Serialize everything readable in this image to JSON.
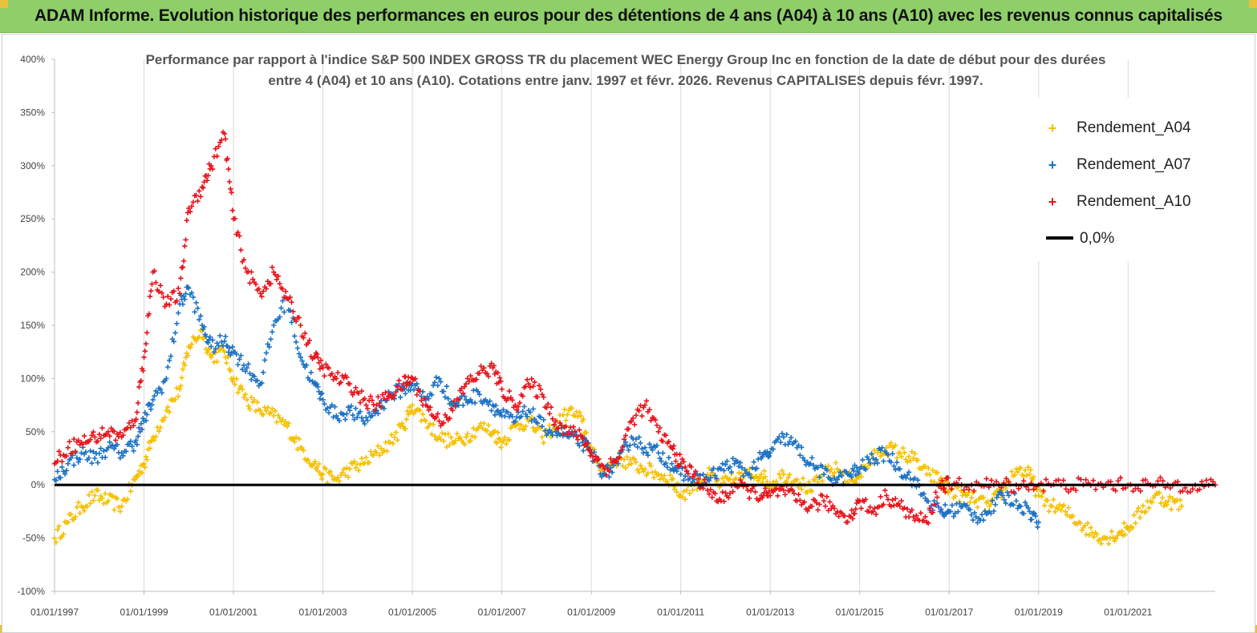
{
  "banner": {
    "title": "ADAM Informe. Evolution historique des performances en euros pour des détentions de 4 ans (A04) à 10 ans (A10) avec les revenus connus capitalisés"
  },
  "chart_data": {
    "type": "scatter",
    "title_line1": "Performance par rapport à l'indice S&P 500 INDEX GROSS TR  du placement WEC Energy Group Inc en fonction de la date de début pour des durées",
    "title_line2": "entre 4 (A04) et 10 ans (A10).  Cotations entre janv. 1997 et févr. 2026. Revenus CAPITALISES depuis févr. 1997.",
    "xlabel": "",
    "ylabel": "",
    "xlim": [
      1997.0,
      2022.95
    ],
    "ylim": [
      -100,
      400
    ],
    "y_ticks": [
      "400%",
      "350%",
      "300%",
      "250%",
      "200%",
      "150%",
      "100%",
      "50%",
      "0%",
      "-50%",
      "-100%"
    ],
    "y_tick_values": [
      400,
      350,
      300,
      250,
      200,
      150,
      100,
      50,
      0,
      -50,
      -100
    ],
    "x_ticks": [
      "01/01/1997",
      "01/01/1999",
      "01/01/2001",
      "01/01/2003",
      "01/01/2005",
      "01/01/2007",
      "01/01/2009",
      "01/01/2011",
      "01/01/2013",
      "01/01/2015",
      "01/01/2017",
      "01/01/2019",
      "01/01/2021"
    ],
    "x_tick_values": [
      1997,
      1999,
      2001,
      2003,
      2005,
      2007,
      2009,
      2011,
      2013,
      2015,
      2017,
      2019,
      2021
    ],
    "grid": "vertical",
    "legend_position": "top-right",
    "series": [
      {
        "name": "Rendement_A04",
        "color": "#f5c000",
        "marker": "plus",
        "x": [
          1997.0,
          1997.3,
          1997.6,
          1997.9,
          1998.2,
          1998.5,
          1998.8,
          1999.0,
          1999.2,
          1999.5,
          1999.8,
          2000.0,
          2000.3,
          2000.5,
          2000.8,
          2001.0,
          2001.3,
          2001.6,
          2001.9,
          2002.2,
          2002.5,
          2002.8,
          2003.0,
          2003.3,
          2003.6,
          2003.9,
          2004.2,
          2004.5,
          2004.8,
          2005.0,
          2005.3,
          2005.6,
          2005.9,
          2006.2,
          2006.5,
          2006.8,
          2007.0,
          2007.3,
          2007.6,
          2007.9,
          2008.2,
          2008.5,
          2008.8,
          2009.0,
          2009.3,
          2009.6,
          2009.9,
          2010.2,
          2010.5,
          2010.8,
          2011.0,
          2011.3,
          2011.6,
          2011.9,
          2012.2,
          2012.5,
          2012.8,
          2013.0,
          2013.3,
          2013.6,
          2013.9,
          2014.2,
          2014.5,
          2014.8,
          2015.0,
          2015.3,
          2015.6,
          2015.9,
          2016.2,
          2016.5,
          2016.8,
          2017.0,
          2017.3,
          2017.6,
          2017.9,
          2018.2,
          2018.5,
          2018.8,
          2019.0,
          2019.3,
          2019.6,
          2019.9,
          2020.2,
          2020.5,
          2020.8,
          2021.0,
          2021.3,
          2021.6,
          2021.9,
          2022.2
        ],
        "values": [
          -50,
          -35,
          -20,
          -10,
          -15,
          -20,
          5,
          20,
          45,
          70,
          90,
          130,
          145,
          120,
          125,
          100,
          80,
          70,
          65,
          55,
          35,
          20,
          10,
          5,
          15,
          20,
          30,
          40,
          55,
          75,
          60,
          45,
          40,
          45,
          55,
          50,
          40,
          55,
          60,
          45,
          55,
          70,
          60,
          30,
          15,
          25,
          20,
          15,
          10,
          5,
          -10,
          0,
          10,
          0,
          5,
          10,
          10,
          0,
          10,
          5,
          -5,
          10,
          15,
          5,
          10,
          25,
          35,
          30,
          25,
          10,
          5,
          -5,
          -10,
          -15,
          -20,
          -5,
          15,
          10,
          -10,
          -20,
          -25,
          -35,
          -45,
          -50,
          -45,
          -40,
          -25,
          -10,
          -15,
          -20
        ],
        "point_count": 90
      },
      {
        "name": "Rendement_A07",
        "color": "#1c72c4",
        "marker": "plus",
        "x": [
          1997.0,
          1997.3,
          1997.6,
          1997.9,
          1998.2,
          1998.5,
          1998.8,
          1999.0,
          1999.2,
          1999.5,
          1999.8,
          2000.0,
          2000.3,
          2000.5,
          2000.8,
          2001.0,
          2001.3,
          2001.6,
          2001.9,
          2002.2,
          2002.5,
          2002.8,
          2003.0,
          2003.3,
          2003.6,
          2003.9,
          2004.2,
          2004.5,
          2004.8,
          2005.0,
          2005.3,
          2005.6,
          2005.9,
          2006.2,
          2006.5,
          2006.8,
          2007.0,
          2007.3,
          2007.6,
          2007.9,
          2008.2,
          2008.5,
          2008.8,
          2009.0,
          2009.3,
          2009.6,
          2009.9,
          2010.2,
          2010.5,
          2010.8,
          2011.0,
          2011.3,
          2011.6,
          2011.9,
          2012.2,
          2012.5,
          2012.8,
          2013.0,
          2013.3,
          2013.6,
          2013.9,
          2014.2,
          2014.5,
          2014.8,
          2015.0,
          2015.3,
          2015.6,
          2015.9,
          2016.2,
          2016.5,
          2016.8,
          2017.0,
          2017.3,
          2017.6,
          2017.9,
          2018.2,
          2018.5,
          2018.8,
          2019.0
        ],
        "values": [
          5,
          20,
          30,
          25,
          35,
          30,
          40,
          60,
          80,
          100,
          170,
          185,
          150,
          130,
          135,
          125,
          110,
          95,
          150,
          175,
          120,
          95,
          80,
          65,
          70,
          60,
          70,
          85,
          90,
          95,
          80,
          100,
          75,
          80,
          85,
          75,
          65,
          60,
          70,
          55,
          50,
          45,
          40,
          30,
          10,
          20,
          45,
          35,
          30,
          20,
          10,
          5,
          5,
          15,
          20,
          10,
          25,
          30,
          45,
          35,
          20,
          10,
          5,
          10,
          15,
          25,
          30,
          15,
          5,
          -15,
          -25,
          -25,
          -20,
          -30,
          -25,
          -10,
          -15,
          -25,
          -35
        ],
        "point_count": 79
      },
      {
        "name": "Rendement_A10",
        "color": "#e8141c",
        "marker": "plus",
        "x": [
          1997.0,
          1997.3,
          1997.6,
          1997.9,
          1998.2,
          1998.5,
          1998.8,
          1999.0,
          1999.2,
          1999.5,
          1999.8,
          2000.0,
          2000.3,
          2000.5,
          2000.8,
          2001.0,
          2001.3,
          2001.6,
          2001.9,
          2002.2,
          2002.5,
          2002.8,
          2003.0,
          2003.3,
          2003.6,
          2003.9,
          2004.2,
          2004.5,
          2004.8,
          2005.0,
          2005.3,
          2005.6,
          2005.9,
          2006.2,
          2006.5,
          2006.8,
          2007.0,
          2007.3,
          2007.6,
          2007.9,
          2008.2,
          2008.5,
          2008.8,
          2009.0,
          2009.3,
          2009.6,
          2009.9,
          2010.2,
          2010.5,
          2010.8,
          2011.0,
          2011.3,
          2011.6,
          2011.9,
          2012.2,
          2012.5,
          2012.8,
          2013.0,
          2013.3,
          2013.6,
          2013.9,
          2014.2,
          2014.5,
          2014.8,
          2015.0,
          2015.3,
          2015.6,
          2015.9,
          2016.2,
          2016.5,
          2016.8,
          2017.0,
          2017.5,
          2018.0,
          2018.5,
          2019.0,
          2019.5,
          2020.0,
          2020.5,
          2021.0,
          2021.5,
          2022.0,
          2022.5,
          2022.95
        ],
        "values": [
          20,
          35,
          40,
          45,
          50,
          45,
          60,
          120,
          200,
          170,
          180,
          260,
          280,
          300,
          330,
          250,
          200,
          180,
          200,
          175,
          150,
          120,
          110,
          100,
          95,
          80,
          75,
          85,
          95,
          100,
          75,
          60,
          70,
          95,
          105,
          110,
          90,
          75,
          95,
          85,
          60,
          50,
          45,
          30,
          15,
          25,
          60,
          75,
          50,
          35,
          20,
          10,
          -5,
          -15,
          0,
          -5,
          -10,
          -10,
          -5,
          -15,
          -20,
          -15,
          -25,
          -30,
          -15,
          -25,
          -10,
          -20,
          -30,
          -35,
          0,
          0,
          0,
          0,
          0,
          0,
          0,
          0,
          0,
          0,
          0,
          0,
          0,
          0
        ],
        "point_count": 84
      },
      {
        "name": "0,0%",
        "color": "#000000",
        "marker": "line",
        "x": [
          1997.0,
          2022.95
        ],
        "values": [
          0,
          0
        ]
      }
    ]
  }
}
